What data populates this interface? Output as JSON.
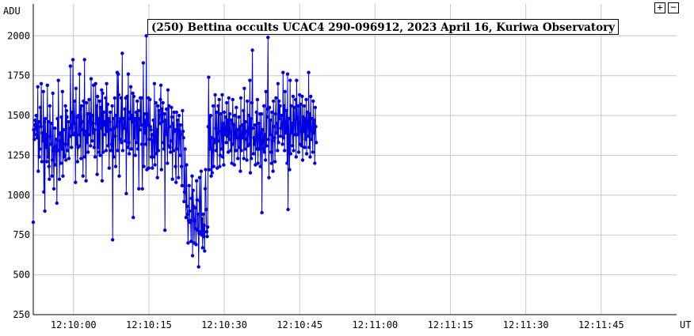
{
  "controls": {
    "zoom_in": "+",
    "zoom_out": "−"
  },
  "chart_data": {
    "type": "line",
    "title": "(250) Bettina occults UCAC4 290-096912, 2023 April 16, Kuriwa Observatory",
    "ylabel": "ADU",
    "xlabel": "UT",
    "ylim": [
      250,
      2200
    ],
    "xlim": [
      "12:09:52",
      "12:12:00"
    ],
    "y_ticks": [
      250,
      500,
      750,
      1000,
      1250,
      1500,
      1750,
      2000
    ],
    "x_ticks": [
      "12:10:00",
      "12:10:15",
      "12:10:30",
      "12:10:45",
      "12:11:00",
      "12:11:15",
      "12:11:30",
      "12:11:45"
    ],
    "grid": true,
    "colors": {
      "series": "#0000e0",
      "grid": "#c8c8c8",
      "axis": "#000000"
    },
    "series": [
      {
        "x_start": "12:09:52",
        "sample_interval_s": 0.1,
        "values": [
          830,
          1410,
          1350,
          1440,
          1470,
          1380,
          1500,
          1420,
          1360,
          1680,
          1150,
          1460,
          1240,
          1290,
          1550,
          1430,
          1700,
          1210,
          1390,
          1340,
          1650,
          1020,
          1460,
          900,
          1480,
          1300,
          1380,
          1210,
          1690,
          1240,
          1460,
          1180,
          1100,
          1560,
          1370,
          1320,
          1450,
          1120,
          1220,
          1640,
          1280,
          1040,
          1300,
          1420,
          1190,
          1300,
          1350,
          950,
          1480,
          1280,
          1720,
          1380,
          1100,
          1340,
          1390,
          1200,
          1490,
          1290,
          1650,
          1120,
          1410,
          1240,
          1250,
          1320,
          1560,
          1220,
          1530,
          1490,
          1280,
          1320,
          1460,
          1230,
          1420,
          1370,
          1810,
          1440,
          1300,
          1520,
          1380,
          1850,
          1380,
          1450,
          1590,
          1390,
          1080,
          1670,
          1320,
          1490,
          1210,
          1300,
          1500,
          1380,
          1760,
          1310,
          1540,
          1230,
          1560,
          1460,
          1410,
          1120,
          1590,
          1380,
          1850,
          1240,
          1400,
          1090,
          1580,
          1330,
          1510,
          1270,
          1460,
          1600,
          1380,
          1510,
          1310,
          1730,
          1450,
          1340,
          1500,
          1390,
          1690,
          1300,
          1410,
          1240,
          1700,
          1450,
          1560,
          1130,
          1620,
          1300,
          1480,
          1270,
          1590,
          1250,
          1550,
          1420,
          1660,
          1090,
          1640,
          1270,
          1520,
          1440,
          1460,
          1380,
          1610,
          1280,
          1700,
          1400,
          1570,
          1310,
          1480,
          1170,
          1460,
          1520,
          1410,
          1280,
          1320,
          1560,
          720,
          1480,
          1240,
          1420,
          1610,
          1370,
          1180,
          1500,
          1430,
          1770,
          1280,
          1760,
          1630,
          1120,
          1460,
          1350,
          1480,
          1610,
          1330,
          1890,
          1280,
          1420,
          1480,
          1420,
          1540,
          1340,
          1610,
          1010,
          1410,
          1620,
          1300,
          1760,
          1330,
          1260,
          1520,
          1480,
          1680,
          1290,
          1500,
          1460,
          1640,
          860,
          1620,
          1360,
          1480,
          1250,
          1470,
          1520,
          1330,
          1590,
          1290,
          1530,
          1040,
          1480,
          1410,
          1610,
          1440,
          1610,
          1320,
          1040,
          1440,
          1830,
          1180,
          1510,
          1390,
          1470,
          1320,
          2000,
          1160,
          1510,
          1440,
          1610,
          1170,
          1350,
          1600,
          1430,
          1410,
          1240,
          1380,
          1170,
          1340,
          1470,
          1240,
          1700,
          1190,
          1340,
          1580,
          1260,
          1410,
          1110,
          1560,
          1280,
          1530,
          1500,
          1450,
          1600,
          1690,
          1160,
          1540,
          1460,
          1580,
          1330,
          1290,
          1510,
          780,
          1470,
          1400,
          1540,
          1380,
          1200,
          1660,
          1310,
          1560,
          1430,
          1300,
          1270,
          1340,
          1550,
          1490,
          1100,
          1450,
          1280,
          1520,
          1400,
          1410,
          1180,
          1080,
          1520,
          1290,
          1470,
          1440,
          1110,
          1500,
          1400,
          1250,
          1440,
          1380,
          1180,
          1060,
          1530,
          1400,
          1360,
          960,
          1020,
          1290,
          1020,
          860,
          1190,
          930,
          880,
          700,
          840,
          1060,
          900,
          830,
          840,
          710,
          980,
          1120,
          620,
          1030,
          930,
          700,
          840,
          920,
          790,
          690,
          1090,
          970,
          780,
          880,
          550,
          760,
          1110,
          960,
          770,
          1150,
          750,
          850,
          670,
          880,
          740,
          810,
          650,
          1040,
          1160,
          910,
          770,
          740,
          800,
          1430,
          1740,
          1160,
          1490,
          1290,
          1500,
          1120,
          1360,
          1140,
          1280,
          1560,
          1180,
          1350,
          1330,
          1630,
          1420,
          1280,
          1520,
          1170,
          1390,
          1560,
          1340,
          1600,
          1180,
          1250,
          1510,
          1400,
          1290,
          1630,
          1240,
          1450,
          1190,
          1520,
          1400,
          1380,
          1490,
          1330,
          1580,
          1370,
          1470,
          1270,
          1610,
          1350,
          1510,
          1390,
          1280,
          1470,
          1200,
          1450,
          1600,
          1320,
          1440,
          1190,
          1500,
          1400,
          1280,
          1550,
          1360,
          1410,
          1230,
          1360,
          1490,
          1300,
          1430,
          1150,
          1610,
          1280,
          1380,
          1440,
          1360,
          1530,
          1230,
          1670,
          1290,
          1460,
          1400,
          1350,
          1220,
          1590,
          1310,
          1390,
          1500,
          1320,
          1720,
          1140,
          1480,
          1230,
          1580,
          1910,
          1420,
          1260,
          1360,
          1320,
          1440,
          1190,
          1350,
          1520,
          1290,
          1600,
          1200,
          1360,
          1450,
          1290,
          1510,
          1180,
          1390,
          1510,
          890,
          1410,
          1340,
          1290,
          1560,
          1270,
          1380,
          1220,
          1650,
          1310,
          1490,
          1540,
          1990,
          1350,
          1110,
          1550,
          1380,
          1470,
          1270,
          1200,
          1520,
          1340,
          1150,
          1590,
          1430,
          1360,
          1210,
          1510,
          1610,
          1390,
          1450,
          1280,
          1700,
          1330,
          1590,
          1480,
          1560,
          1370,
          1420,
          1500,
          1440,
          1320,
          1770,
          1360,
          1560,
          1280,
          1650,
          1390,
          1410,
          1530,
          1200,
          1760,
          910,
          1480,
          1330,
          1160,
          1720,
          1260,
          1560,
          1390,
          1450,
          1310,
          1620,
          1280,
          1550,
          1440,
          1380,
          1600,
          1240,
          1720,
          1490,
          1380,
          1560,
          1270,
          1450,
          1630,
          1320,
          1570,
          1400,
          1310,
          1620,
          1220,
          1490,
          1400,
          1560,
          1300,
          1480,
          1350,
          1600,
          1260,
          1520,
          1430,
          1370,
          1770,
          1300,
          1510,
          1240,
          1620,
          1410,
          1350,
          1480,
          1270,
          1590,
          1390,
          1470,
          1200,
          1550,
          1430,
          1330
        ]
      }
    ]
  }
}
